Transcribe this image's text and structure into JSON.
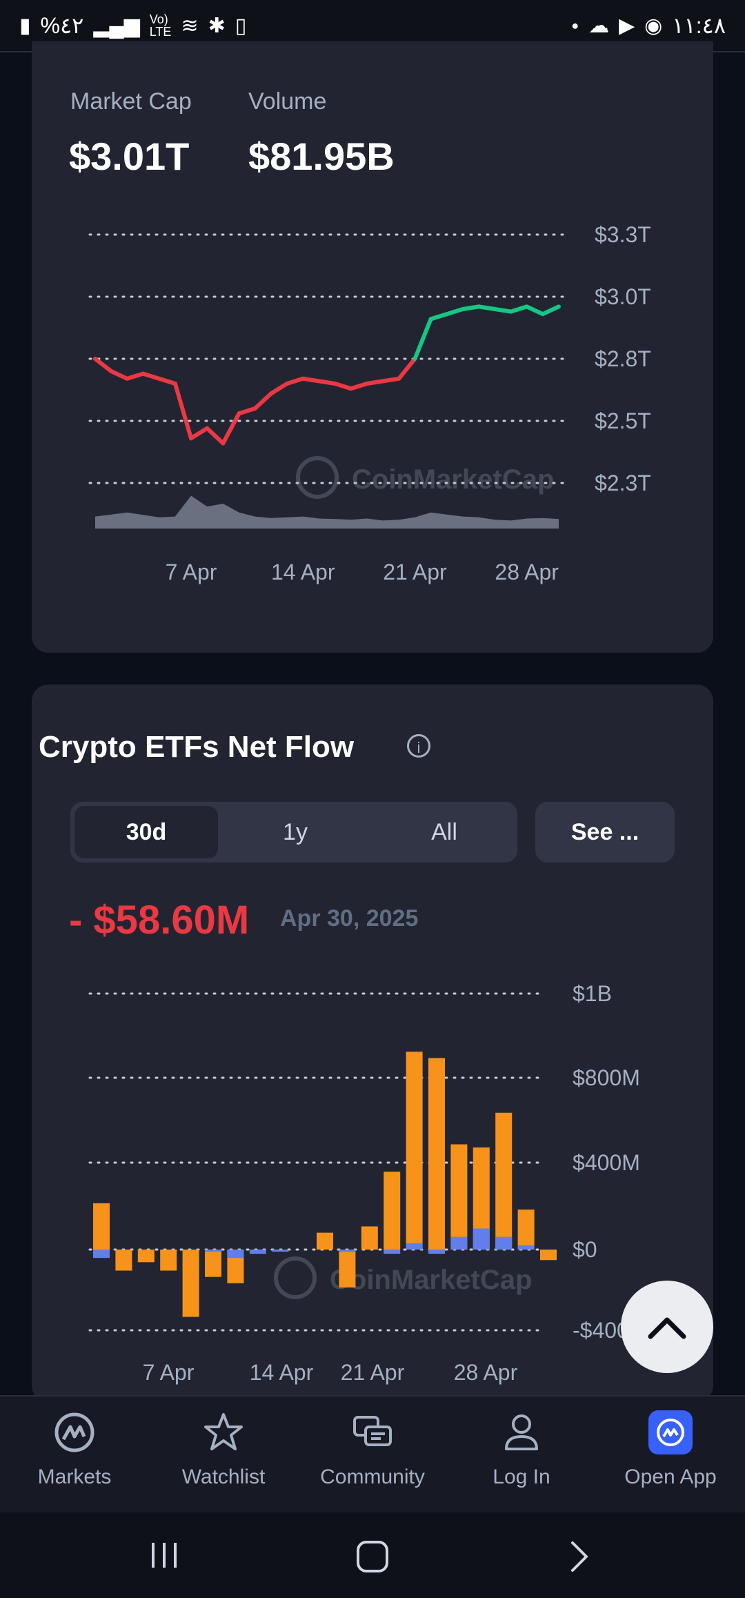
{
  "status_bar": {
    "left_text": "%٤٢",
    "right_time": "١١:٤٨"
  },
  "market": {
    "cap_label": "Market Cap",
    "cap_value": "$3.01T",
    "volume_label": "Volume",
    "volume_value": "$81.95B",
    "watermark": "CoinMarketCap"
  },
  "etf": {
    "title": "Crypto ETFs Net Flow",
    "tabs": [
      "30d",
      "1y",
      "All"
    ],
    "active_tab": "30d",
    "see_more": "See ...",
    "net_value": "- $58.60M",
    "date": "Apr 30, 2025",
    "watermark": "CoinMarketCap"
  },
  "bottom_nav": {
    "items": [
      {
        "label": "Markets",
        "icon": "markets-icon"
      },
      {
        "label": "Watchlist",
        "icon": "star-icon"
      },
      {
        "label": "Community",
        "icon": "chat-icon"
      },
      {
        "label": "Log In",
        "icon": "user-icon"
      },
      {
        "label": "Open App",
        "icon": "cmc-app-icon"
      }
    ]
  },
  "colors": {
    "up": "#16c784",
    "down": "#ea3943",
    "btc": "#f7931a",
    "eth": "#627eea"
  },
  "chart_data": [
    {
      "type": "line",
      "yticks": [
        "$3.3T",
        "$3.0T",
        "$2.8T",
        "$2.5T",
        "$2.3T"
      ],
      "xticks": [
        "7 Apr",
        "14 Apr",
        "21 Apr",
        "28 Apr"
      ],
      "ylim": [
        2.3,
        3.3
      ],
      "baseline": 2.8,
      "x": [
        "1 Apr",
        "2 Apr",
        "3 Apr",
        "4 Apr",
        "5 Apr",
        "6 Apr",
        "7 Apr",
        "8 Apr",
        "9 Apr",
        "10 Apr",
        "11 Apr",
        "12 Apr",
        "13 Apr",
        "14 Apr",
        "15 Apr",
        "16 Apr",
        "17 Apr",
        "18 Apr",
        "19 Apr",
        "20 Apr",
        "21 Apr",
        "22 Apr",
        "23 Apr",
        "24 Apr",
        "25 Apr",
        "26 Apr",
        "27 Apr",
        "28 Apr",
        "29 Apr",
        "30 Apr"
      ],
      "values": [
        2.8,
        2.75,
        2.72,
        2.74,
        2.72,
        2.7,
        2.48,
        2.52,
        2.46,
        2.58,
        2.6,
        2.66,
        2.7,
        2.72,
        2.71,
        2.7,
        2.68,
        2.7,
        2.71,
        2.72,
        2.8,
        2.96,
        2.98,
        3.0,
        3.01,
        3.0,
        2.99,
        3.01,
        2.98,
        3.01
      ],
      "volume": [
        0.3,
        0.35,
        0.4,
        0.34,
        0.28,
        0.3,
        0.82,
        0.55,
        0.62,
        0.4,
        0.3,
        0.26,
        0.28,
        0.3,
        0.25,
        0.24,
        0.22,
        0.25,
        0.2,
        0.22,
        0.28,
        0.4,
        0.35,
        0.3,
        0.28,
        0.22,
        0.2,
        0.25,
        0.26,
        0.24
      ]
    },
    {
      "type": "bar",
      "yticks": [
        "$1B",
        "$800M",
        "$400M",
        "$0",
        "-$400M"
      ],
      "xticks": [
        "7 Apr",
        "14 Apr",
        "21 Apr",
        "28 Apr"
      ],
      "ylim": [
        -400,
        1200
      ],
      "categories": [
        "1 Apr",
        "2 Apr",
        "3 Apr",
        "4 Apr",
        "7 Apr",
        "8 Apr",
        "9 Apr",
        "10 Apr",
        "11 Apr",
        "14 Apr",
        "15 Apr",
        "16 Apr",
        "17 Apr",
        "21 Apr",
        "22 Apr",
        "23 Apr",
        "24 Apr",
        "25 Apr",
        "28 Apr",
        "29 Apr",
        "30 Apr"
      ],
      "series": [
        {
          "values": [
            220,
            -100,
            -60,
            -100,
            -320,
            -130,
            -160,
            0,
            0,
            0,
            80,
            -180,
            110,
            370,
            940,
            910,
            500,
            485,
            650,
            190,
            -50
          ]
        },
        {
          "values": [
            -40,
            0,
            0,
            0,
            0,
            -10,
            -40,
            -20,
            -10,
            0,
            0,
            -10,
            0,
            -20,
            30,
            -20,
            60,
            100,
            60,
            20,
            0
          ]
        }
      ]
    }
  ]
}
